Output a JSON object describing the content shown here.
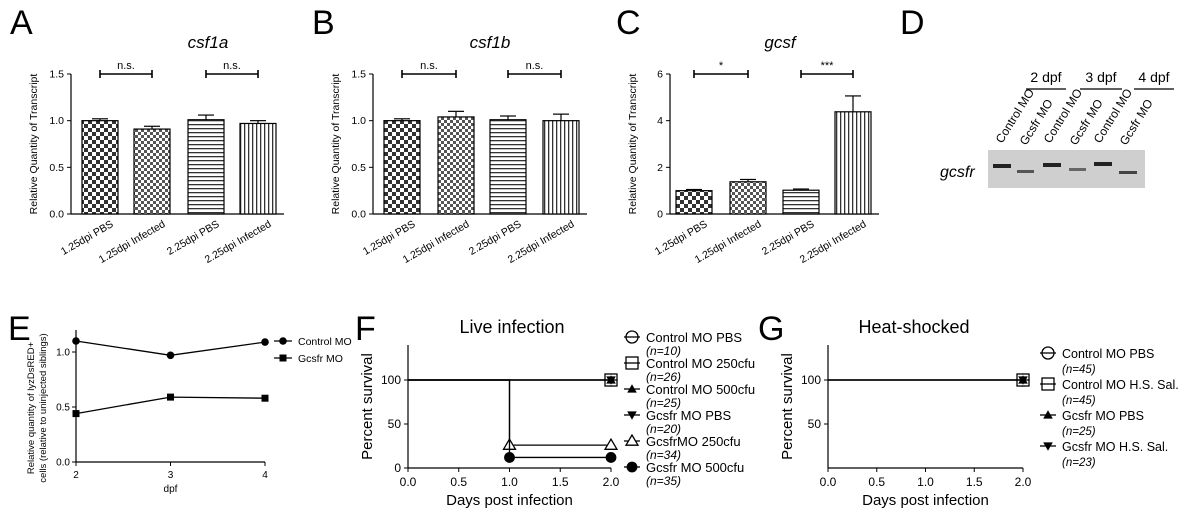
{
  "panels": {
    "A": {
      "letter": "A",
      "chart_data": {
        "type": "bar",
        "title": "csf1a",
        "ylabel": "Relative Quantity of Transcript",
        "ylim": [
          0,
          1.5
        ],
        "yticks": [
          "0.0",
          "0.5",
          "1.0",
          "1.5"
        ],
        "categories": [
          "1.25dpi PBS",
          "1.25dpi Infected",
          "2.25dpi PBS",
          "2.25dpi Infected"
        ],
        "values": [
          1.0,
          0.91,
          1.01,
          0.97
        ],
        "errors": [
          0.02,
          0.03,
          0.05,
          0.03
        ],
        "patterns": [
          "checker",
          "checker-fine",
          "hstripe",
          "vstripe"
        ],
        "significance": [
          "n.s.",
          "n.s."
        ]
      }
    },
    "B": {
      "letter": "B",
      "chart_data": {
        "type": "bar",
        "title": "csf1b",
        "ylabel": "Relative Quantity of Transcript",
        "ylim": [
          0,
          1.5
        ],
        "yticks": [
          "0.0",
          "0.5",
          "1.0",
          "1.5"
        ],
        "categories": [
          "1.25dpi PBS",
          "1.25dpi Infected",
          "2.25dpi PBS",
          "2.25dpi Infected"
        ],
        "values": [
          1.0,
          1.04,
          1.01,
          1.0
        ],
        "errors": [
          0.02,
          0.06,
          0.04,
          0.07
        ],
        "patterns": [
          "checker",
          "checker-fine",
          "hstripe",
          "vstripe"
        ],
        "significance": [
          "n.s.",
          "n.s."
        ]
      }
    },
    "C": {
      "letter": "C",
      "chart_data": {
        "type": "bar",
        "title": "gcsf",
        "ylabel": "Relative Quantity of Transcript",
        "ylim": [
          0,
          6
        ],
        "yticks": [
          "0",
          "2",
          "4",
          "6"
        ],
        "categories": [
          "1.25dpi PBS",
          "1.25dpi Infected",
          "2.25dpi PBS",
          "2.25dpi Infected"
        ],
        "values": [
          1.0,
          1.38,
          1.02,
          4.38
        ],
        "errors": [
          0.05,
          0.1,
          0.05,
          0.68
        ],
        "patterns": [
          "checker",
          "checker-fine",
          "hstripe",
          "vstripe"
        ],
        "significance": [
          "*",
          "***"
        ]
      }
    },
    "D": {
      "letter": "D",
      "timepoints": [
        "2 dpf",
        "3 dpf",
        "4 dpf"
      ],
      "lanes": [
        "Control MO",
        "Gcsfr MO",
        "Control MO",
        "Gcsfr MO",
        "Control MO",
        "Gcsfr MO"
      ],
      "gene_label": "gcsfr"
    },
    "E": {
      "letter": "E",
      "chart_data": {
        "type": "line",
        "ylabel_line1": "Relative quantity of lyzDsRED+",
        "ylabel_line2": "cells (relative to uninjected siblings)",
        "xlabel": "dpf",
        "x": [
          2,
          3,
          4
        ],
        "xticks": [
          "2",
          "3",
          "4"
        ],
        "ylim": [
          0,
          1.2
        ],
        "yticks": [
          "0.0",
          "0.5",
          "1.0"
        ],
        "series": [
          {
            "name": "Control MO",
            "marker": "circle",
            "values": [
              1.1,
              0.97,
              1.09
            ]
          },
          {
            "name": "Gcsfr MO",
            "marker": "square",
            "values": [
              0.44,
              0.59,
              0.58
            ]
          }
        ]
      }
    },
    "F": {
      "letter": "F",
      "chart_data": {
        "type": "line",
        "title": "Live infection",
        "xlabel": "Days post infection",
        "ylabel": "Percent survival",
        "xlim": [
          0,
          2
        ],
        "ylim": [
          0,
          100
        ],
        "xticks": [
          "0.0",
          "0.5",
          "1.0",
          "1.5",
          "2.0"
        ],
        "yticks": [
          "0",
          "50",
          "100"
        ],
        "series": [
          {
            "name": "Control MO PBS",
            "n": "(n=10)",
            "marker": "circle-bar",
            "x": [
              0,
              2
            ],
            "y": [
              100,
              100
            ]
          },
          {
            "name": "Control MO 250cfu",
            "n": "(n=26)",
            "marker": "square-bar",
            "x": [
              0,
              2
            ],
            "y": [
              100,
              100
            ]
          },
          {
            "name": "Control MO 500cfu",
            "n": "(n=25)",
            "marker": "triangle-up",
            "x": [
              0,
              2
            ],
            "y": [
              100,
              100
            ]
          },
          {
            "name": "Gcsfr MO PBS",
            "n": "(n=20)",
            "marker": "triangle-down",
            "x": [
              0,
              2
            ],
            "y": [
              100,
              100
            ]
          },
          {
            "name": "GcsfrMO 250cfu",
            "n": "(n=34)",
            "marker": "triangle-open",
            "x": [
              0,
              1,
              1,
              2
            ],
            "y": [
              100,
              100,
              26,
              26
            ]
          },
          {
            "name": "Gcsfr MO 500cfu",
            "n": "(n=35)",
            "marker": "circle-filled",
            "x": [
              0,
              1,
              1,
              2
            ],
            "y": [
              100,
              100,
              12,
              12
            ]
          }
        ]
      }
    },
    "G": {
      "letter": "G",
      "chart_data": {
        "type": "line",
        "title": "Heat-shocked",
        "xlabel": "Days post infection",
        "ylabel": "Percent survival",
        "xlim": [
          0,
          2
        ],
        "ylim": [
          0,
          100
        ],
        "xticks": [
          "0.0",
          "0.5",
          "1.0",
          "1.5",
          "2.0"
        ],
        "yticks": [
          "50",
          "100"
        ],
        "series": [
          {
            "name": "Control MO PBS",
            "n": "(n=45)",
            "marker": "circle-bar",
            "x": [
              0,
              2
            ],
            "y": [
              100,
              100
            ]
          },
          {
            "name": "Control MO H.S. Sal.",
            "n": "(n=45)",
            "marker": "square-bar",
            "x": [
              0,
              2
            ],
            "y": [
              100,
              100
            ]
          },
          {
            "name": "Gcsfr MO PBS",
            "n": "(n=25)",
            "marker": "triangle-up",
            "x": [
              0,
              2
            ],
            "y": [
              100,
              100
            ]
          },
          {
            "name": "Gcsfr MO H.S. Sal.",
            "n": "(n=23)",
            "marker": "triangle-down",
            "x": [
              0,
              2
            ],
            "y": [
              100,
              100
            ]
          }
        ]
      }
    }
  }
}
